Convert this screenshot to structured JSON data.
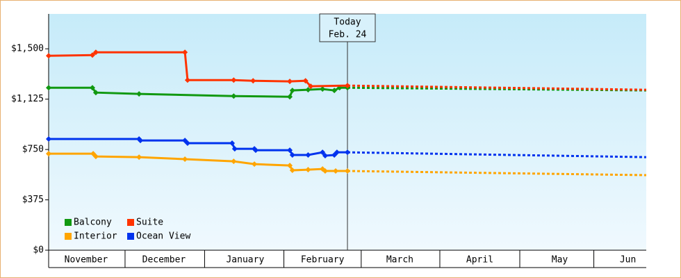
{
  "chart_data": {
    "type": "line",
    "xlim": [
      0,
      228
    ],
    "ylim": [
      0,
      1760
    ],
    "yticks": [
      {
        "value": 0,
        "label": "$0"
      },
      {
        "value": 375,
        "label": "$375"
      },
      {
        "value": 750,
        "label": "$750"
      },
      {
        "value": 1125,
        "label": "$1,125"
      },
      {
        "value": 1500,
        "label": "$1,500"
      }
    ],
    "xticks": [
      {
        "value": 14.3,
        "label": "November"
      },
      {
        "value": 44,
        "label": "December"
      },
      {
        "value": 75,
        "label": "January"
      },
      {
        "value": 104.5,
        "label": "February"
      },
      {
        "value": 134,
        "label": "March"
      },
      {
        "value": 164.5,
        "label": "April"
      },
      {
        "value": 195,
        "label": "May"
      },
      {
        "value": 221,
        "label": "Jun"
      }
    ],
    "annotation": {
      "lines": [
        "Today",
        "Feb. 24"
      ],
      "x": 114
    },
    "series": [
      {
        "name": "Balcony",
        "color": "#119911",
        "x": [
          0,
          16.7,
          18,
          34.5,
          70.6,
          92,
          93,
          99,
          104.5,
          109,
          111,
          114,
          228
        ],
        "values": [
          1210,
          1210,
          1174,
          1164,
          1148,
          1143,
          1190,
          1195,
          1200,
          1190,
          1210,
          1210,
          1190
        ]
      },
      {
        "name": "Suite",
        "color": "#ff3300",
        "x": [
          0,
          16.7,
          18,
          52,
          53,
          70.6,
          78,
          92,
          98,
          100,
          114,
          228
        ],
        "values": [
          1448,
          1453,
          1474,
          1474,
          1267,
          1267,
          1262,
          1257,
          1262,
          1221,
          1226,
          1195
        ]
      },
      {
        "name": "Interior",
        "color": "#ffa500",
        "x": [
          0,
          17,
          18,
          34.5,
          52,
          70.6,
          78.5,
          92,
          93,
          99,
          104.5,
          105.5,
          109.5,
          114,
          228
        ],
        "values": [
          719,
          719,
          698,
          693,
          678,
          662,
          641,
          631,
          595,
          600,
          605,
          590,
          590,
          590,
          559
        ]
      },
      {
        "name": "Ocean View",
        "color": "#0033ee",
        "x": [
          0,
          34.5,
          35,
          52,
          53,
          70,
          71,
          78.5,
          79,
          92,
          93,
          99,
          104.5,
          105.5,
          109,
          110,
          114,
          228
        ],
        "values": [
          828,
          828,
          817,
          817,
          797,
          797,
          755,
          755,
          745,
          745,
          709,
          709,
          729,
          704,
          709,
          729,
          729,
          693
        ]
      }
    ]
  }
}
